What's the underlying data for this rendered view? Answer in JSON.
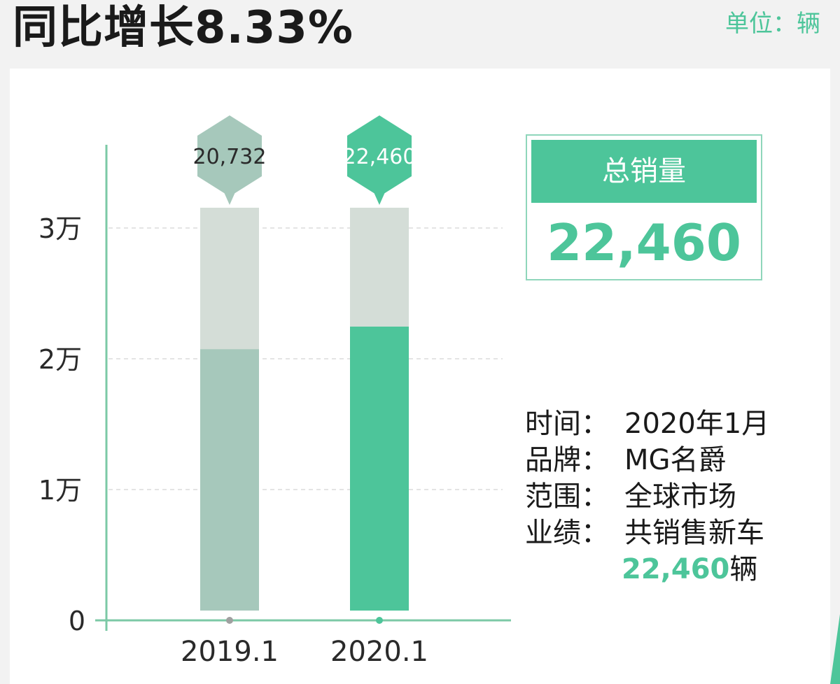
{
  "header": {
    "title": "同比增长8.33%",
    "unit": "单位：辆"
  },
  "summary": {
    "label": "总销量",
    "value": "22,460"
  },
  "info": [
    {
      "label": "时间：",
      "value": "2020年1月"
    },
    {
      "label": "品牌：",
      "value": "MG名爵"
    },
    {
      "label": "范围：",
      "value": "全球市场"
    },
    {
      "label": "业绩：",
      "value": "共销售新车"
    }
  ],
  "info_extra": {
    "number": "22,460",
    "unit": "辆"
  },
  "colors": {
    "accent": "#4dc59a",
    "muted_bar": "#a6c8bb",
    "bar_track": "#d4ddd7",
    "axis": "#7cc9a6"
  },
  "chart_data": {
    "type": "bar",
    "categories": [
      "2019.1",
      "2020.1"
    ],
    "values": [
      20732,
      22460
    ],
    "value_labels": [
      "20,732",
      "22,460"
    ],
    "yticks": [
      {
        "value": 0,
        "label": "0"
      },
      {
        "value": 10000,
        "label": "1万"
      },
      {
        "value": 20000,
        "label": "2万"
      },
      {
        "value": 30000,
        "label": "3万"
      }
    ],
    "ylim": [
      0,
      31000
    ],
    "bar_colors": [
      "#a6c8bb",
      "#4dc59a"
    ],
    "title": "",
    "xlabel": "",
    "ylabel": "",
    "grid": true
  }
}
